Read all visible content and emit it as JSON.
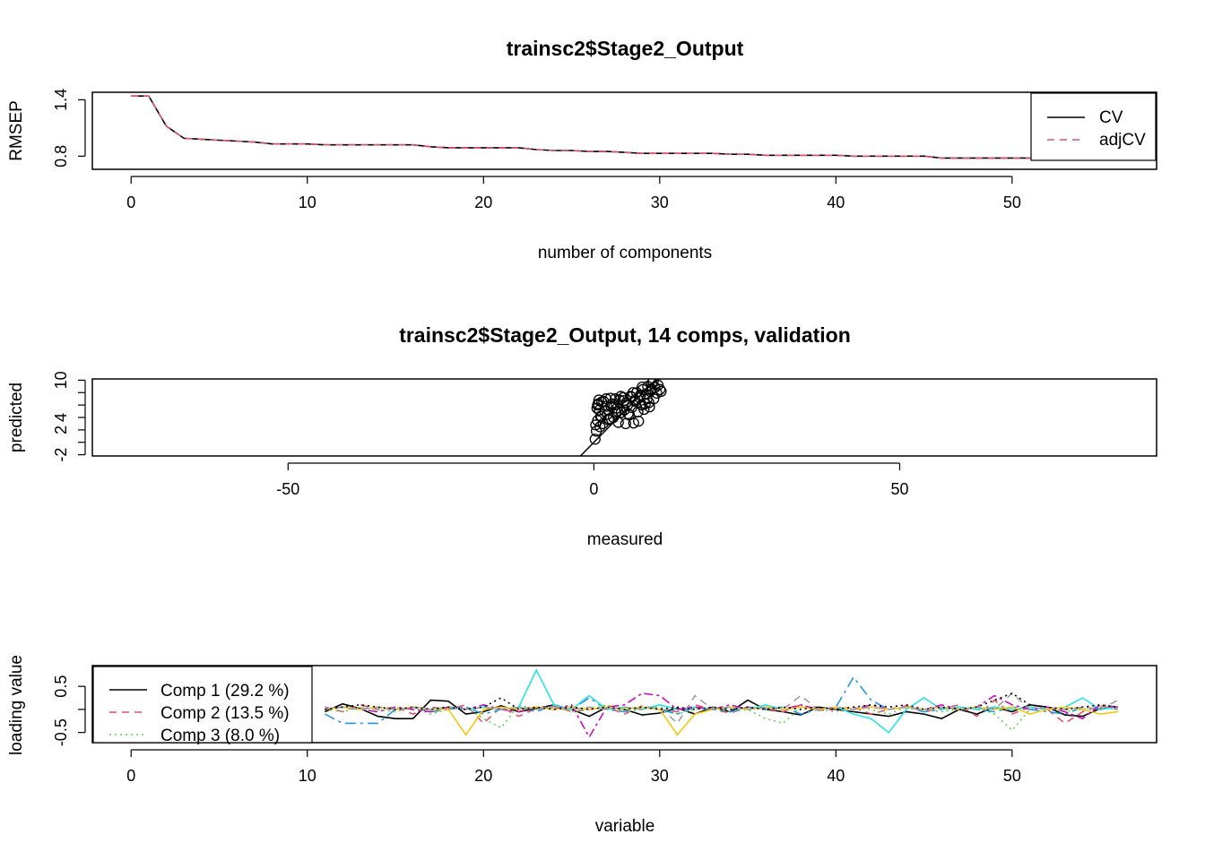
{
  "chart_data": [
    {
      "type": "line",
      "title": "trainsc2$Stage2_Output",
      "xlabel": "number of components",
      "ylabel": "RMSEP",
      "xlim": [
        -2.2,
        58.2
      ],
      "ylim": [
        0.66,
        1.48
      ],
      "xticks": [
        "0",
        "10",
        "20",
        "30",
        "40",
        "50"
      ],
      "xtick_values": [
        0,
        10,
        20,
        30,
        40,
        50
      ],
      "yticks": [
        "0.8",
        "1.4"
      ],
      "ytick_values": [
        0.8,
        1.4
      ],
      "legend_position": "top-right",
      "x": [
        0,
        1,
        2,
        3,
        4,
        5,
        6,
        7,
        8,
        9,
        10,
        11,
        12,
        13,
        14,
        15,
        16,
        17,
        18,
        19,
        20,
        21,
        22,
        23,
        24,
        25,
        26,
        27,
        28,
        29,
        30,
        31,
        32,
        33,
        34,
        35,
        36,
        37,
        38,
        39,
        40,
        41,
        42,
        43,
        44,
        45,
        46,
        47,
        48,
        49,
        50,
        51,
        52,
        53,
        54,
        55,
        56
      ],
      "series": [
        {
          "name": "CV",
          "color": "#000000",
          "dash": "none",
          "values": [
            1.44,
            1.44,
            1.12,
            0.99,
            0.98,
            0.97,
            0.96,
            0.95,
            0.93,
            0.93,
            0.93,
            0.92,
            0.92,
            0.92,
            0.92,
            0.92,
            0.92,
            0.9,
            0.89,
            0.89,
            0.89,
            0.89,
            0.89,
            0.87,
            0.86,
            0.86,
            0.85,
            0.85,
            0.84,
            0.83,
            0.83,
            0.83,
            0.83,
            0.83,
            0.82,
            0.82,
            0.81,
            0.81,
            0.81,
            0.81,
            0.81,
            0.8,
            0.8,
            0.8,
            0.8,
            0.8,
            0.78,
            0.78,
            0.78,
            0.78,
            0.78,
            0.78,
            0.78,
            0.78,
            0.78,
            0.78,
            0.78
          ]
        },
        {
          "name": "adjCV",
          "color": "#DF536B",
          "dash": "8,6",
          "values": [
            1.44,
            1.44,
            1.12,
            0.99,
            0.98,
            0.97,
            0.96,
            0.95,
            0.93,
            0.93,
            0.93,
            0.92,
            0.92,
            0.92,
            0.92,
            0.92,
            0.92,
            0.9,
            0.89,
            0.89,
            0.89,
            0.89,
            0.89,
            0.87,
            0.86,
            0.86,
            0.85,
            0.85,
            0.84,
            0.83,
            0.83,
            0.83,
            0.83,
            0.83,
            0.82,
            0.82,
            0.81,
            0.81,
            0.81,
            0.81,
            0.81,
            0.8,
            0.8,
            0.8,
            0.8,
            0.8,
            0.78,
            0.78,
            0.78,
            0.78,
            0.78,
            0.78,
            0.78,
            0.78,
            0.78,
            0.78,
            0.78
          ]
        }
      ]
    },
    {
      "type": "scatter",
      "title": "trainsc2$Stage2_Output, 14 comps, validation",
      "xlabel": "measured",
      "ylabel": "predicted",
      "xlim": [
        -82,
        92
      ],
      "ylim": [
        -2.2,
        10.2
      ],
      "xticks": [
        "-50",
        "0",
        "50"
      ],
      "xtick_values": [
        -50,
        0,
        50
      ],
      "yticks": [
        "-2",
        "2",
        "4",
        "10"
      ],
      "ytick_values": [
        -2,
        0,
        2,
        4,
        6,
        8,
        10
      ],
      "ytick_label_values": [
        -2,
        2,
        4,
        10
      ],
      "reference_line": {
        "slope": 1,
        "intercept": 0
      },
      "points": {
        "x": [
          0.2,
          0.4,
          0.6,
          0.5,
          0.8,
          1.0,
          1.2,
          0.7,
          1.5,
          1.8,
          2.0,
          2.2,
          1.3,
          2.5,
          2.8,
          3.0,
          3.2,
          3.5,
          3.8,
          4.0,
          4.2,
          4.5,
          4.8,
          5.0,
          5.2,
          5.5,
          5.8,
          6.0,
          6.2,
          6.5,
          6.8,
          7.0,
          7.2,
          7.5,
          7.8,
          8.0,
          8.2,
          8.5,
          8.8,
          9.0,
          9.2,
          9.5,
          9.8,
          10.0,
          10.5,
          11.0,
          0.3,
          0.9,
          1.6,
          2.4,
          3.3,
          4.4,
          5.6,
          6.7,
          7.6,
          8.4,
          9.4,
          10.3,
          1.1,
          2.7,
          3.9,
          5.3,
          6.4,
          7.3,
          8.7,
          9.7,
          0.6,
          2.1,
          3.6,
          4.9,
          6.1,
          7.9,
          9.1,
          10.8
        ],
        "y": [
          0.5,
          1.8,
          3.5,
          5.5,
          6.8,
          2.5,
          4.2,
          6.2,
          3.0,
          5.0,
          7.0,
          4.5,
          6.5,
          3.8,
          5.8,
          6.2,
          4.0,
          7.0,
          5.5,
          3.2,
          6.8,
          4.8,
          7.2,
          5.2,
          3.0,
          6.0,
          4.4,
          7.4,
          5.6,
          3.1,
          6.6,
          8.0,
          4.9,
          7.2,
          6.0,
          8.5,
          5.3,
          7.8,
          9.0,
          6.4,
          8.2,
          9.5,
          7.0,
          8.8,
          9.2,
          8.2,
          2.8,
          5.2,
          6.6,
          3.6,
          6.0,
          7.4,
          4.6,
          6.8,
          7.6,
          6.2,
          8.6,
          7.9,
          4.2,
          7.1,
          5.0,
          6.4,
          8.0,
          3.4,
          7.0,
          9.8,
          6.0,
          5.8,
          4.9,
          6.7,
          7.3,
          8.9,
          5.7,
          8.5
        ]
      }
    },
    {
      "type": "line",
      "xlabel": "variable",
      "ylabel": "loading value",
      "xlim": [
        -2.2,
        58.2
      ],
      "ylim": [
        -0.72,
        0.95
      ],
      "xticks": [
        "0",
        "10",
        "20",
        "30",
        "40",
        "50"
      ],
      "xtick_values": [
        0,
        10,
        20,
        30,
        40,
        50
      ],
      "yticks": [
        "-0.5",
        "0.5"
      ],
      "ytick_values": [
        -0.5,
        0,
        0.5
      ],
      "ytick_label_values": [
        -0.5,
        0.5
      ],
      "legend_position": "top-left",
      "x": [
        11,
        12,
        13,
        14,
        15,
        16,
        17,
        18,
        19,
        20,
        21,
        22,
        23,
        24,
        25,
        26,
        27,
        28,
        29,
        30,
        31,
        32,
        33,
        34,
        35,
        36,
        37,
        38,
        39,
        40,
        41,
        42,
        43,
        44,
        45,
        46,
        47,
        48,
        49,
        50,
        51,
        52,
        53,
        54,
        55,
        56
      ],
      "series": [
        {
          "name": "Comp 1 (29.2 %)",
          "color": "#000000",
          "dash": "none",
          "values": [
            -0.05,
            0.12,
            0.02,
            -0.15,
            -0.2,
            -0.2,
            0.2,
            0.18,
            -0.1,
            -0.05,
            0.08,
            -0.05,
            0.02,
            0.1,
            0.0,
            -0.15,
            0.05,
            0.0,
            -0.12,
            -0.08,
            0.03,
            -0.1,
            0.05,
            -0.05,
            0.2,
            0.0,
            -0.05,
            -0.12,
            0.05,
            0.0,
            -0.05,
            -0.1,
            -0.15,
            -0.05,
            -0.1,
            -0.2,
            0.0,
            -0.1,
            0.05,
            -0.05,
            0.1,
            0.05,
            -0.12,
            -0.15,
            0.02,
            0.05
          ]
        },
        {
          "name": "Comp 2 (13.5 %)",
          "color": "#DF536B",
          "dash": "8,6",
          "values": [
            0.05,
            -0.05,
            0.1,
            0.0,
            0.05,
            -0.1,
            0.05,
            0.0,
            0.1,
            -0.3,
            0.05,
            -0.15,
            0.02,
            0.08,
            -0.05,
            0.0,
            0.05,
            -0.1,
            0.08,
            0.0,
            -0.05,
            0.1,
            0.0,
            -0.08,
            0.05,
            0.02,
            -0.05,
            0.1,
            -0.02,
            0.0,
            0.05,
            -0.1,
            0.0,
            0.08,
            -0.05,
            0.02,
            0.1,
            -0.15,
            0.2,
            -0.1,
            0.05,
            0.0,
            -0.3,
            -0.05,
            0.08,
            0.0
          ]
        },
        {
          "name": "Comp 3 (8.0 %)",
          "color": "#61D04F",
          "dash": "2,4",
          "values": [
            0.0,
            -0.05,
            0.05,
            0.0,
            -0.05,
            0.05,
            -0.1,
            0.0,
            0.05,
            -0.2,
            -0.4,
            0.1,
            0.0,
            0.05,
            -0.05,
            0.0,
            0.1,
            -0.05,
            0.0,
            0.05,
            -0.1,
            0.0,
            0.05,
            -0.05,
            0.0,
            -0.2,
            -0.3,
            0.05,
            0.0,
            -0.05,
            0.05,
            0.0,
            -0.1,
            0.05,
            0.0,
            -0.05,
            0.0,
            0.05,
            -0.1,
            -0.45,
            0.0,
            0.05,
            -0.05,
            0.0,
            0.05,
            0.0
          ]
        },
        {
          "color": "#2297E6",
          "dash": "12,5,3,5",
          "values": [
            -0.1,
            -0.3,
            -0.3,
            -0.3,
            0.0,
            0.05,
            -0.05,
            0.0,
            0.05,
            -0.1,
            0.0,
            0.05,
            -0.05,
            0.1,
            0.0,
            0.25,
            0.0,
            -0.05,
            0.05,
            0.0,
            -0.1,
            0.05,
            0.0,
            -0.05,
            0.05,
            0.0,
            0.05,
            -0.1,
            0.0,
            0.05,
            0.7,
            0.2,
            0.0,
            0.05,
            -0.05,
            0.0,
            0.05,
            0.0,
            -0.05,
            0.05,
            0.0,
            -0.05,
            -0.1,
            0.05,
            0.0,
            0.05
          ]
        },
        {
          "color": "#28E2E5",
          "dash": "none",
          "values": [
            0.0,
            0.05,
            0.0,
            0.05,
            0.0,
            0.05,
            0.0,
            0.05,
            0.0,
            0.05,
            0.0,
            0.05,
            0.85,
            0.1,
            0.0,
            0.3,
            0.0,
            0.05,
            0.0,
            0.1,
            0.0,
            0.05,
            0.0,
            0.05,
            0.0,
            0.1,
            0.0,
            0.05,
            0.0,
            0.05,
            -0.1,
            -0.2,
            -0.5,
            0.0,
            0.25,
            0.0,
            0.05,
            0.0,
            0.05,
            0.0,
            0.05,
            0.0,
            0.05,
            0.25,
            0.0,
            0.05
          ]
        },
        {
          "color": "#CD0BBC",
          "dash": "3,4,10,4",
          "values": [
            0.0,
            0.05,
            0.0,
            -0.05,
            0.05,
            0.0,
            -0.05,
            0.05,
            0.0,
            0.1,
            0.0,
            -0.05,
            0.05,
            0.0,
            0.1,
            -0.6,
            0.05,
            0.1,
            0.35,
            0.3,
            0.0,
            0.05,
            0.0,
            0.1,
            0.0,
            0.05,
            0.0,
            0.1,
            0.0,
            0.05,
            0.0,
            0.1,
            0.0,
            0.05,
            0.0,
            0.1,
            0.0,
            0.05,
            0.3,
            0.1,
            0.0,
            0.05,
            -0.05,
            -0.2,
            0.1,
            0.05
          ]
        },
        {
          "color": "#F5C710",
          "dash": "none",
          "values": [
            0.0,
            0.05,
            0.0,
            0.05,
            0.0,
            0.05,
            0.0,
            0.0,
            -0.55,
            0.0,
            0.05,
            0.0,
            0.05,
            0.0,
            0.05,
            0.0,
            0.05,
            0.0,
            0.05,
            0.0,
            -0.55,
            -0.1,
            0.0,
            0.05,
            0.0,
            0.05,
            0.0,
            0.05,
            0.0,
            0.05,
            0.0,
            0.05,
            0.0,
            0.05,
            0.0,
            0.05,
            0.0,
            0.05,
            0.0,
            0.05,
            -0.1,
            0.0,
            0.05,
            0.0,
            -0.1,
            -0.05
          ]
        },
        {
          "color": "#9E9E9E",
          "dash": "8,6",
          "values": [
            0.0,
            0.05,
            0.0,
            0.05,
            0.0,
            0.05,
            0.0,
            0.05,
            0.0,
            0.05,
            0.0,
            0.05,
            0.0,
            0.05,
            0.0,
            0.05,
            0.0,
            0.05,
            0.0,
            0.05,
            -0.3,
            0.3,
            0.0,
            0.05,
            0.0,
            0.05,
            0.0,
            0.3,
            0.0,
            0.05,
            0.0,
            0.05,
            0.0,
            0.05,
            0.0,
            0.05,
            0.0,
            0.05,
            0.0,
            0.35,
            0.0,
            0.05,
            0.0,
            0.05,
            0.0,
            0.2
          ]
        },
        {
          "color": "#000000",
          "dash": "2,4",
          "values": [
            0.0,
            0.05,
            0.1,
            0.05,
            0.0,
            0.05,
            0.0,
            0.05,
            0.0,
            0.05,
            0.25,
            0.0,
            0.05,
            0.0,
            0.05,
            0.0,
            0.05,
            0.0,
            0.05,
            0.0,
            0.05,
            0.0,
            0.05,
            0.0,
            0.05,
            0.0,
            0.05,
            0.0,
            0.05,
            0.0,
            0.05,
            0.1,
            0.05,
            0.1,
            0.0,
            0.05,
            0.0,
            0.05,
            0.2,
            0.35,
            0.1,
            0.05,
            0.0,
            0.05,
            0.1,
            0.05
          ]
        }
      ]
    }
  ]
}
